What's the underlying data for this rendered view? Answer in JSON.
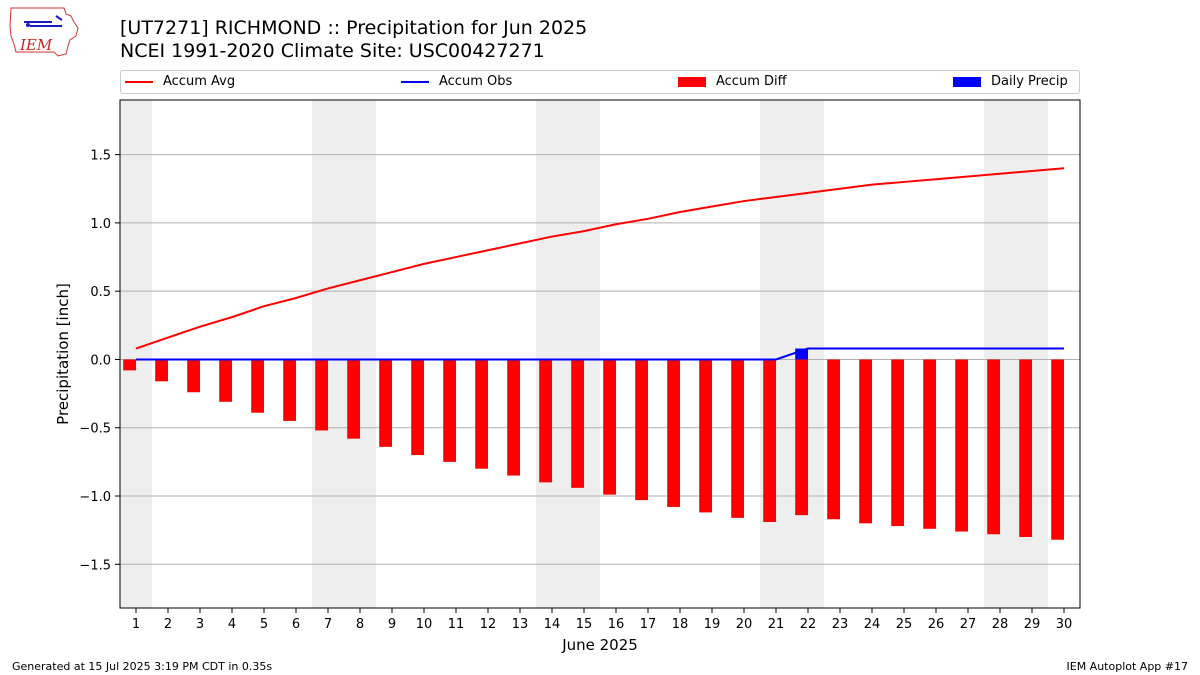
{
  "header": {
    "title_line1": "[UT7271] RICHMOND :: Precipitation for Jun 2025",
    "title_line2": "NCEI 1991-2020 Climate Site: USC00427271",
    "logo_text": "IEM"
  },
  "legend": {
    "items": [
      {
        "label": "Accum Avg",
        "color": "#ff0000",
        "kind": "line"
      },
      {
        "label": "Accum Obs",
        "color": "#0000ff",
        "kind": "line"
      },
      {
        "label": "Accum Diff",
        "color": "#ff0000",
        "kind": "bar"
      },
      {
        "label": "Daily Precip",
        "color": "#0000ff",
        "kind": "bar"
      }
    ]
  },
  "chart_data": {
    "type": "bar",
    "xlabel": "June 2025",
    "ylabel": "Precipitation [inch]",
    "ylim": [
      -1.82,
      1.9
    ],
    "yticks": [
      -1.5,
      -1.0,
      -0.5,
      0.0,
      0.5,
      1.0,
      1.5
    ],
    "ytick_labels": [
      "−1.5",
      "−1.0",
      "−0.5",
      "0.0",
      "0.5",
      "1.0",
      "1.5"
    ],
    "x": [
      1,
      2,
      3,
      4,
      5,
      6,
      7,
      8,
      9,
      10,
      11,
      12,
      13,
      14,
      15,
      16,
      17,
      18,
      19,
      20,
      21,
      22,
      23,
      24,
      25,
      26,
      27,
      28,
      29,
      30
    ],
    "weekend_days": [
      1,
      7,
      8,
      14,
      15,
      21,
      22,
      28,
      29
    ],
    "grid": "horizontal",
    "series": [
      {
        "name": "Accum Avg",
        "kind": "line",
        "color": "#ff0000",
        "values": [
          0.08,
          0.16,
          0.24,
          0.31,
          0.39,
          0.45,
          0.52,
          0.58,
          0.64,
          0.7,
          0.75,
          0.8,
          0.85,
          0.9,
          0.94,
          0.99,
          1.03,
          1.08,
          1.12,
          1.16,
          1.19,
          1.22,
          1.25,
          1.28,
          1.3,
          1.32,
          1.34,
          1.36,
          1.38,
          1.4
        ]
      },
      {
        "name": "Accum Obs",
        "kind": "line",
        "color": "#0000ff",
        "values": [
          0,
          0,
          0,
          0,
          0,
          0,
          0,
          0,
          0,
          0,
          0,
          0,
          0,
          0,
          0,
          0,
          0,
          0,
          0,
          0,
          0,
          0.08,
          0.08,
          0.08,
          0.08,
          0.08,
          0.08,
          0.08,
          0.08,
          0.08
        ]
      },
      {
        "name": "Accum Diff",
        "kind": "bar",
        "color": "#ff0000",
        "values": [
          -0.08,
          -0.16,
          -0.24,
          -0.31,
          -0.39,
          -0.45,
          -0.52,
          -0.58,
          -0.64,
          -0.7,
          -0.75,
          -0.8,
          -0.85,
          -0.9,
          -0.94,
          -0.99,
          -1.03,
          -1.08,
          -1.12,
          -1.16,
          -1.19,
          -1.14,
          -1.17,
          -1.2,
          -1.22,
          -1.24,
          -1.26,
          -1.28,
          -1.3,
          -1.32
        ]
      },
      {
        "name": "Daily Precip",
        "kind": "bar",
        "color": "#0000ff",
        "values": [
          0,
          0,
          0,
          0,
          0,
          0,
          0,
          0,
          0,
          0,
          0,
          0,
          0,
          0,
          0,
          0,
          0,
          0,
          0,
          0,
          0,
          0.08,
          0,
          0,
          0,
          0,
          0,
          0,
          0,
          0
        ]
      }
    ]
  },
  "footer": {
    "generated": "Generated at 15 Jul 2025 3:19 PM CDT in 0.35s",
    "app": "IEM Autoplot App #17"
  }
}
